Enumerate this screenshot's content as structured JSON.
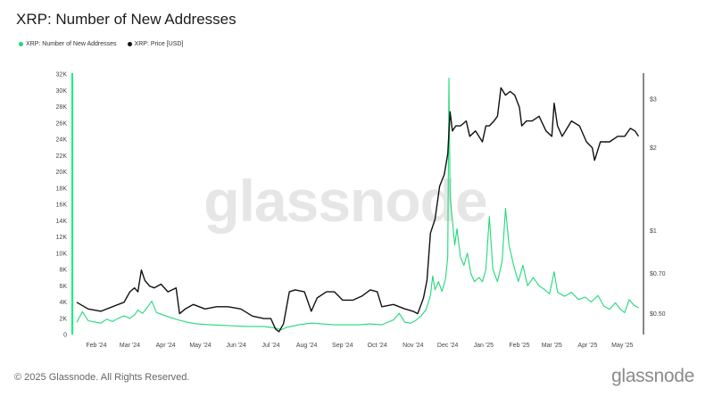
{
  "header": {
    "title": "XRP: Number of New Addresses"
  },
  "legend": [
    {
      "label": "XRP: Number of New Addresses",
      "color": "#22d97a"
    },
    {
      "label": "XRP: Price [USD]",
      "color": "#111111"
    }
  ],
  "watermark": "glassnode",
  "footer": {
    "copyright": "© 2025 Glassnode. All Rights Reserved.",
    "brand": "glassnode"
  },
  "chart_data": {
    "type": "line",
    "title": "XRP: Number of New Addresses",
    "x_labels": [
      "Feb '24",
      "Mar '24",
      "Apr '24",
      "May '24",
      "Jun '24",
      "Jul '24",
      "Aug '24",
      "Sep '24",
      "Oct '24",
      "Nov '24",
      "Dec '24",
      "Jan '25",
      "Feb '25",
      "Mar '25",
      "Apr '25",
      "May '25"
    ],
    "y_left_ticks": [
      "0",
      "2K",
      "4K",
      "6K",
      "8K",
      "10K",
      "12K",
      "14K",
      "16K",
      "18K",
      "20K",
      "22K",
      "24K",
      "26K",
      "28K",
      "30K",
      "32K"
    ],
    "y_left_range": [
      0,
      32000
    ],
    "y_right_ticks": [
      "$0.50",
      "$0.70",
      "$1",
      "$2",
      "$3"
    ],
    "y_right_scale": "log",
    "y_right_range": [
      0.42,
      3.7
    ],
    "grid": false,
    "legend_position": "top-left",
    "series": [
      {
        "name": "XRP: Number of New Addresses",
        "axis": "left",
        "color": "#22d97a",
        "points": [
          [
            "2024-01-15",
            1500
          ],
          [
            "2024-01-20",
            2800
          ],
          [
            "2024-01-25",
            1700
          ],
          [
            "2024-02-01",
            1500
          ],
          [
            "2024-02-05",
            1400
          ],
          [
            "2024-02-10",
            1900
          ],
          [
            "2024-02-15",
            1600
          ],
          [
            "2024-02-20",
            2000
          ],
          [
            "2024-02-25",
            2300
          ],
          [
            "2024-03-01",
            2000
          ],
          [
            "2024-03-05",
            2400
          ],
          [
            "2024-03-08",
            3000
          ],
          [
            "2024-03-12",
            2600
          ],
          [
            "2024-03-16",
            3300
          ],
          [
            "2024-03-20",
            4100
          ],
          [
            "2024-03-24",
            2700
          ],
          [
            "2024-03-28",
            2500
          ],
          [
            "2024-04-05",
            2100
          ],
          [
            "2024-04-12",
            1800
          ],
          [
            "2024-04-20",
            1500
          ],
          [
            "2024-04-28",
            1300
          ],
          [
            "2024-05-10",
            1200
          ],
          [
            "2024-05-25",
            1100
          ],
          [
            "2024-06-10",
            1000
          ],
          [
            "2024-06-25",
            1000
          ],
          [
            "2024-07-05",
            800
          ],
          [
            "2024-07-10",
            600
          ],
          [
            "2024-07-15",
            900
          ],
          [
            "2024-07-25",
            1200
          ],
          [
            "2024-08-05",
            1400
          ],
          [
            "2024-08-15",
            1300
          ],
          [
            "2024-08-25",
            1200
          ],
          [
            "2024-09-05",
            1200
          ],
          [
            "2024-09-15",
            1200
          ],
          [
            "2024-09-25",
            1300
          ],
          [
            "2024-10-05",
            1200
          ],
          [
            "2024-10-10",
            1500
          ],
          [
            "2024-10-15",
            1800
          ],
          [
            "2024-10-20",
            2600
          ],
          [
            "2024-10-25",
            1500
          ],
          [
            "2024-10-30",
            1400
          ],
          [
            "2024-11-03",
            1700
          ],
          [
            "2024-11-08",
            2300
          ],
          [
            "2024-11-12",
            3000
          ],
          [
            "2024-11-16",
            4800
          ],
          [
            "2024-11-18",
            7200
          ],
          [
            "2024-11-20",
            5500
          ],
          [
            "2024-11-23",
            6500
          ],
          [
            "2024-11-26",
            5300
          ],
          [
            "2024-11-29",
            6800
          ],
          [
            "2024-12-01",
            9500
          ],
          [
            "2024-12-02",
            31500
          ],
          [
            "2024-12-03",
            17000
          ],
          [
            "2024-12-05",
            14000
          ],
          [
            "2024-12-07",
            11000
          ],
          [
            "2024-12-09",
            13000
          ],
          [
            "2024-12-12",
            9500
          ],
          [
            "2024-12-15",
            8500
          ],
          [
            "2024-12-18",
            10000
          ],
          [
            "2024-12-21",
            7500
          ],
          [
            "2024-12-24",
            6500
          ],
          [
            "2024-12-28",
            7000
          ],
          [
            "2024-12-31",
            6500
          ],
          [
            "2025-01-03",
            8000
          ],
          [
            "2025-01-06",
            14500
          ],
          [
            "2025-01-09",
            8000
          ],
          [
            "2025-01-13",
            6500
          ],
          [
            "2025-01-17",
            9000
          ],
          [
            "2025-01-20",
            15500
          ],
          [
            "2025-01-23",
            11000
          ],
          [
            "2025-01-27",
            8500
          ],
          [
            "2025-01-31",
            6500
          ],
          [
            "2025-02-04",
            8500
          ],
          [
            "2025-02-08",
            6000
          ],
          [
            "2025-02-13",
            7000
          ],
          [
            "2025-02-18",
            6000
          ],
          [
            "2025-02-23",
            5500
          ],
          [
            "2025-02-27",
            5000
          ],
          [
            "2025-03-03",
            7700
          ],
          [
            "2025-03-06",
            5200
          ],
          [
            "2025-03-12",
            4700
          ],
          [
            "2025-03-18",
            5200
          ],
          [
            "2025-03-24",
            4300
          ],
          [
            "2025-03-30",
            4600
          ],
          [
            "2025-04-04",
            4000
          ],
          [
            "2025-04-10",
            4800
          ],
          [
            "2025-04-15",
            3500
          ],
          [
            "2025-04-20",
            3100
          ],
          [
            "2025-04-25",
            3900
          ],
          [
            "2025-04-30",
            3000
          ],
          [
            "2025-05-03",
            2700
          ],
          [
            "2025-05-07",
            4300
          ],
          [
            "2025-05-11",
            3600
          ],
          [
            "2025-05-15",
            3300
          ]
        ]
      },
      {
        "name": "XRP: Price [USD]",
        "axis": "right",
        "color": "#111111",
        "points": [
          [
            "2024-01-15",
            0.55
          ],
          [
            "2024-01-25",
            0.52
          ],
          [
            "2024-02-05",
            0.51
          ],
          [
            "2024-02-15",
            0.53
          ],
          [
            "2024-02-25",
            0.55
          ],
          [
            "2024-03-01",
            0.6
          ],
          [
            "2024-03-05",
            0.62
          ],
          [
            "2024-03-08",
            0.6
          ],
          [
            "2024-03-11",
            0.72
          ],
          [
            "2024-03-14",
            0.66
          ],
          [
            "2024-03-18",
            0.63
          ],
          [
            "2024-03-22",
            0.62
          ],
          [
            "2024-03-28",
            0.64
          ],
          [
            "2024-04-03",
            0.6
          ],
          [
            "2024-04-10",
            0.62
          ],
          [
            "2024-04-13",
            0.5
          ],
          [
            "2024-04-18",
            0.52
          ],
          [
            "2024-04-25",
            0.54
          ],
          [
            "2024-05-05",
            0.52
          ],
          [
            "2024-05-15",
            0.53
          ],
          [
            "2024-05-25",
            0.53
          ],
          [
            "2024-06-05",
            0.52
          ],
          [
            "2024-06-15",
            0.49
          ],
          [
            "2024-06-25",
            0.48
          ],
          [
            "2024-07-01",
            0.48
          ],
          [
            "2024-07-05",
            0.44
          ],
          [
            "2024-07-08",
            0.43
          ],
          [
            "2024-07-12",
            0.46
          ],
          [
            "2024-07-17",
            0.6
          ],
          [
            "2024-07-22",
            0.61
          ],
          [
            "2024-07-30",
            0.6
          ],
          [
            "2024-08-05",
            0.51
          ],
          [
            "2024-08-10",
            0.57
          ],
          [
            "2024-08-18",
            0.6
          ],
          [
            "2024-08-25",
            0.6
          ],
          [
            "2024-09-01",
            0.56
          ],
          [
            "2024-09-10",
            0.56
          ],
          [
            "2024-09-18",
            0.58
          ],
          [
            "2024-09-25",
            0.61
          ],
          [
            "2024-10-01",
            0.6
          ],
          [
            "2024-10-05",
            0.53
          ],
          [
            "2024-10-15",
            0.54
          ],
          [
            "2024-10-25",
            0.52
          ],
          [
            "2024-11-01",
            0.51
          ],
          [
            "2024-11-05",
            0.5
          ],
          [
            "2024-11-10",
            0.57
          ],
          [
            "2024-11-13",
            0.66
          ],
          [
            "2024-11-16",
            0.98
          ],
          [
            "2024-11-20",
            1.1
          ],
          [
            "2024-11-24",
            1.45
          ],
          [
            "2024-11-28",
            1.6
          ],
          [
            "2024-12-01",
            1.9
          ],
          [
            "2024-12-03",
            2.7
          ],
          [
            "2024-12-05",
            2.3
          ],
          [
            "2024-12-08",
            2.4
          ],
          [
            "2024-12-12",
            2.4
          ],
          [
            "2024-12-17",
            2.5
          ],
          [
            "2024-12-20",
            2.2
          ],
          [
            "2024-12-25",
            2.3
          ],
          [
            "2024-12-31",
            2.1
          ],
          [
            "2025-01-03",
            2.4
          ],
          [
            "2025-01-06",
            2.4
          ],
          [
            "2025-01-10",
            2.5
          ],
          [
            "2025-01-13",
            2.6
          ],
          [
            "2025-01-16",
            3.3
          ],
          [
            "2025-01-20",
            3.1
          ],
          [
            "2025-01-24",
            3.2
          ],
          [
            "2025-01-28",
            3.1
          ],
          [
            "2025-02-01",
            2.8
          ],
          [
            "2025-02-03",
            2.4
          ],
          [
            "2025-02-07",
            2.5
          ],
          [
            "2025-02-12",
            2.5
          ],
          [
            "2025-02-18",
            2.6
          ],
          [
            "2025-02-24",
            2.3
          ],
          [
            "2025-03-01",
            2.2
          ],
          [
            "2025-03-03",
            2.9
          ],
          [
            "2025-03-06",
            2.4
          ],
          [
            "2025-03-10",
            2.2
          ],
          [
            "2025-03-18",
            2.5
          ],
          [
            "2025-03-25",
            2.4
          ],
          [
            "2025-03-31",
            2.1
          ],
          [
            "2025-04-05",
            2.0
          ],
          [
            "2025-04-07",
            1.8
          ],
          [
            "2025-04-12",
            2.1
          ],
          [
            "2025-04-20",
            2.1
          ],
          [
            "2025-04-27",
            2.2
          ],
          [
            "2025-05-03",
            2.2
          ],
          [
            "2025-05-08",
            2.35
          ],
          [
            "2025-05-12",
            2.3
          ],
          [
            "2025-05-15",
            2.2
          ]
        ]
      }
    ]
  }
}
